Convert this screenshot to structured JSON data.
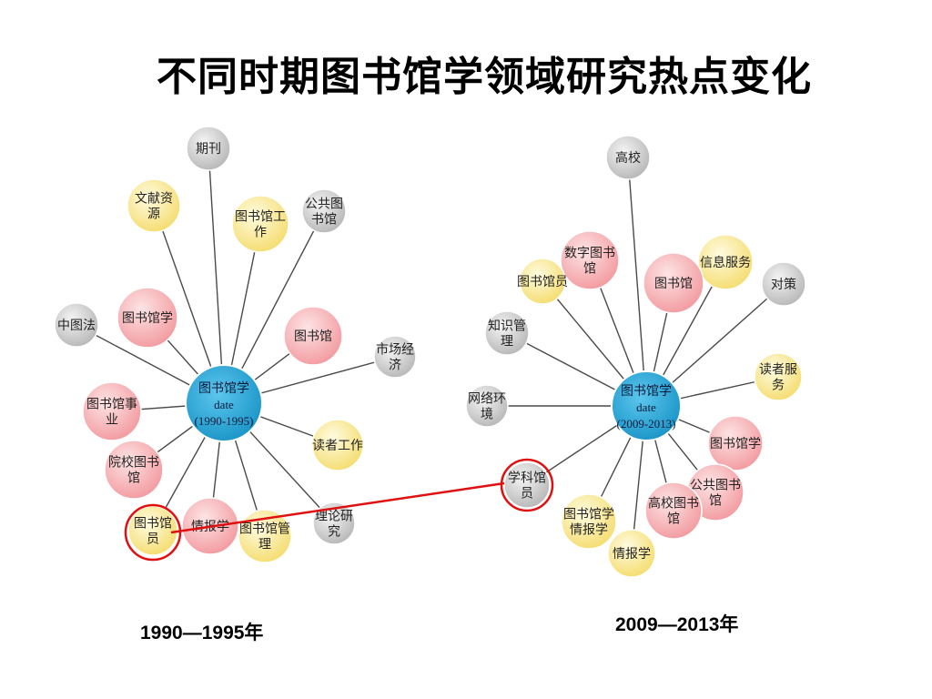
{
  "title": "不同时期图书馆学领域研究热点变化",
  "colors": {
    "pink": "#f4a7ab",
    "yellow": "#f7e27a",
    "gray": "#bdbdbd",
    "center": "#1e9fd2",
    "highlight": "#e01010"
  },
  "left": {
    "caption": "1990—1995年",
    "center": {
      "lines": [
        "图书馆学",
        "date",
        "(1990-1995)"
      ]
    },
    "nodes": [
      {
        "lines": [
          "期刊"
        ],
        "color": "gray"
      },
      {
        "lines": [
          "文献资",
          "源"
        ],
        "color": "yellow"
      },
      {
        "lines": [
          "图书馆工",
          "作"
        ],
        "color": "yellow"
      },
      {
        "lines": [
          "公共图",
          "书馆"
        ],
        "color": "gray"
      },
      {
        "lines": [
          "中图法"
        ],
        "color": "gray"
      },
      {
        "lines": [
          "图书馆学"
        ],
        "color": "pink"
      },
      {
        "lines": [
          "图书馆"
        ],
        "color": "pink"
      },
      {
        "lines": [
          "市场经",
          "济"
        ],
        "color": "gray"
      },
      {
        "lines": [
          "图书馆事",
          "业"
        ],
        "color": "pink"
      },
      {
        "lines": [
          "读者工作"
        ],
        "color": "yellow"
      },
      {
        "lines": [
          "院校图书",
          "馆"
        ],
        "color": "pink"
      },
      {
        "lines": [
          "图书馆",
          "员"
        ],
        "color": "yellow",
        "highlight": true
      },
      {
        "lines": [
          "情报学"
        ],
        "color": "pink"
      },
      {
        "lines": [
          "图书馆管",
          "理"
        ],
        "color": "yellow"
      },
      {
        "lines": [
          "理论研",
          "究"
        ],
        "color": "gray"
      }
    ]
  },
  "right": {
    "caption": "2009—2013年",
    "center": {
      "lines": [
        "图书馆学",
        "date",
        "(2009-2013)"
      ]
    },
    "nodes": [
      {
        "lines": [
          "高校"
        ],
        "color": "gray"
      },
      {
        "lines": [
          "数字图书",
          "馆"
        ],
        "color": "pink"
      },
      {
        "lines": [
          "图书馆员"
        ],
        "color": "yellow"
      },
      {
        "lines": [
          "信息服务"
        ],
        "color": "yellow"
      },
      {
        "lines": [
          "图书馆"
        ],
        "color": "pink"
      },
      {
        "lines": [
          "对策"
        ],
        "color": "gray"
      },
      {
        "lines": [
          "知识管",
          "理"
        ],
        "color": "gray"
      },
      {
        "lines": [
          "读者服",
          "务"
        ],
        "color": "yellow"
      },
      {
        "lines": [
          "网络环",
          "境"
        ],
        "color": "gray"
      },
      {
        "lines": [
          "图书馆学"
        ],
        "color": "pink"
      },
      {
        "lines": [
          "学科馆",
          "员"
        ],
        "color": "gray",
        "highlight": true
      },
      {
        "lines": [
          "公共图书",
          "馆"
        ],
        "color": "pink"
      },
      {
        "lines": [
          "高校图书",
          "馆"
        ],
        "color": "pink"
      },
      {
        "lines": [
          "图书馆学",
          "情报学"
        ],
        "color": "yellow"
      },
      {
        "lines": [
          "情报学"
        ],
        "color": "yellow"
      }
    ]
  }
}
